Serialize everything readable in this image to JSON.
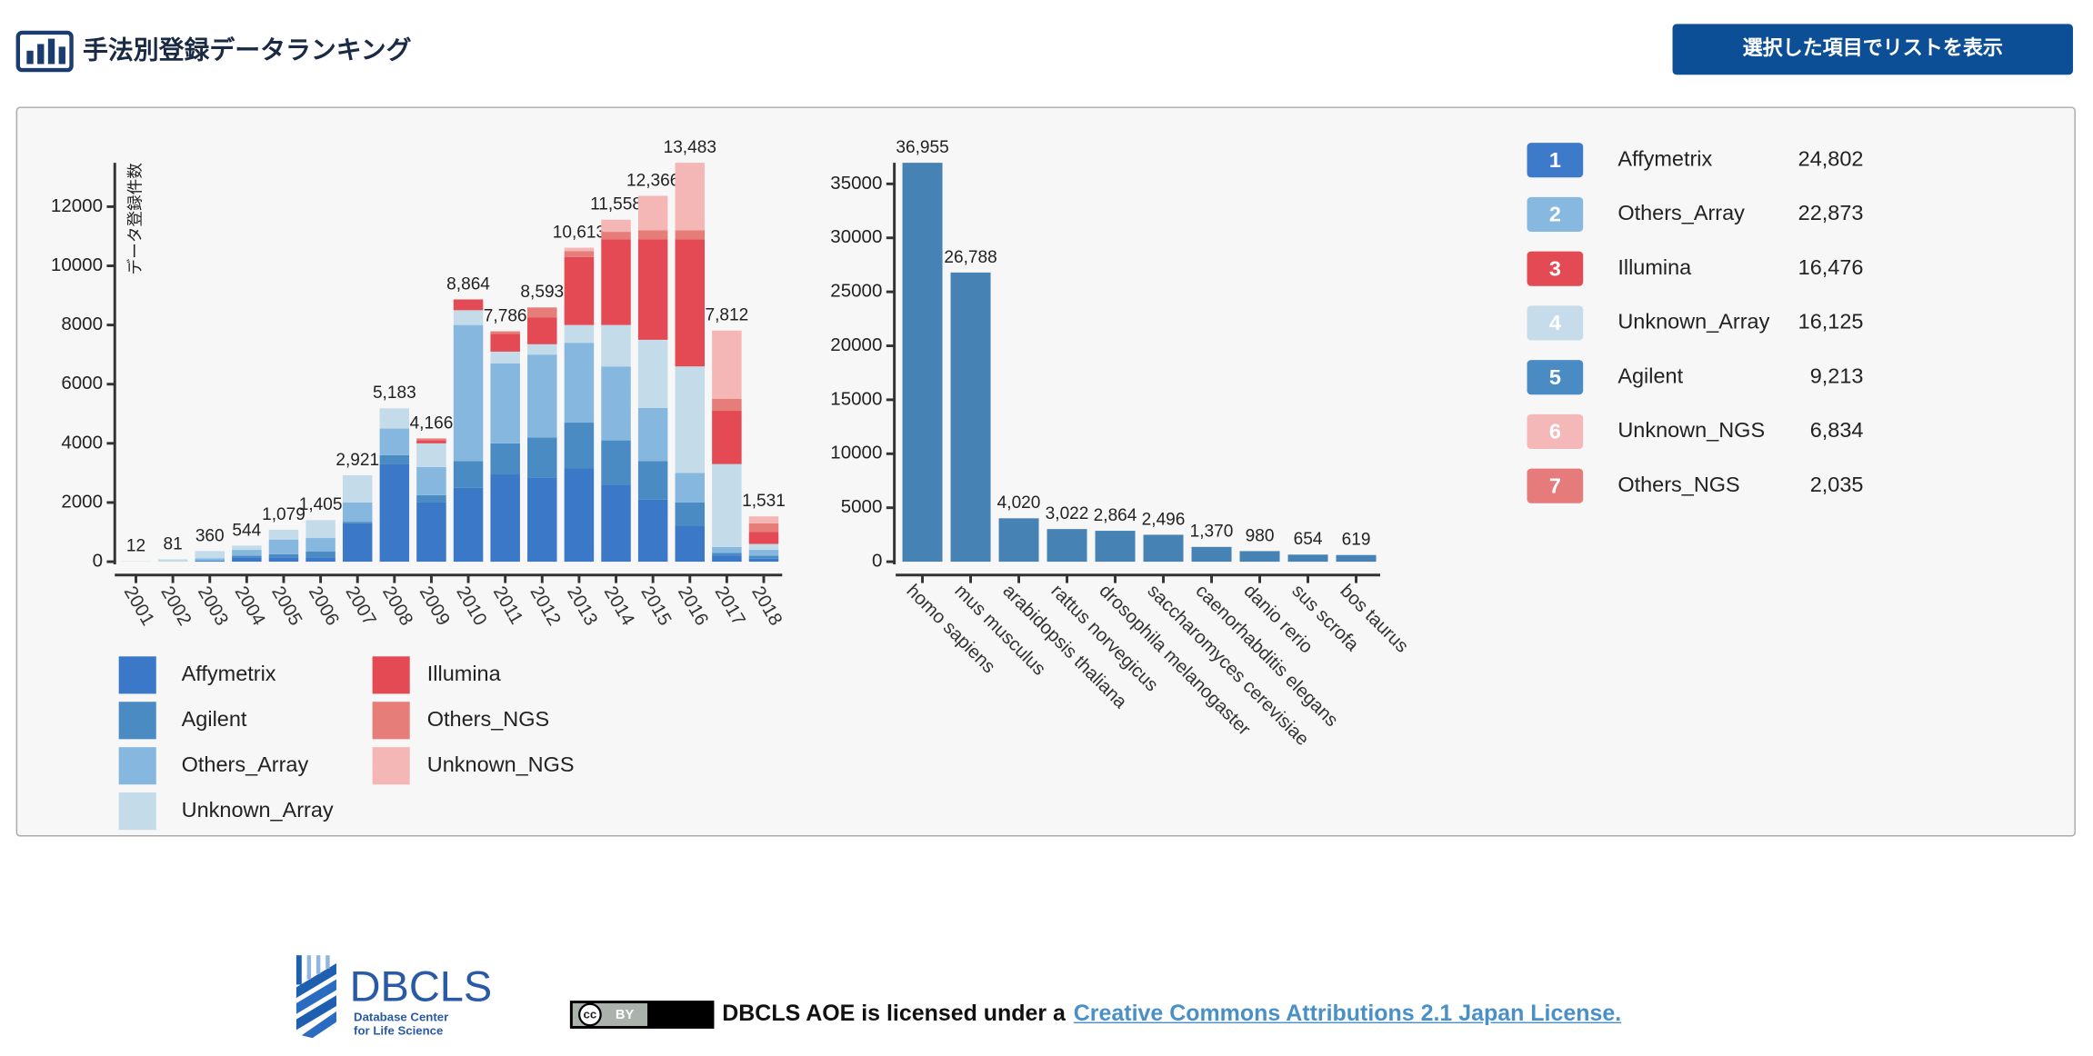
{
  "header": {
    "title": "手法別登録データランキング",
    "button": "選択した項目でリストを表示"
  },
  "chart_data": [
    {
      "type": "stacked-bar",
      "y_label": "データ登録件数",
      "categories": [
        "2001",
        "2002",
        "2003",
        "2004",
        "2005",
        "2006",
        "2007",
        "2008",
        "2009",
        "2010",
        "2011",
        "2012",
        "2013",
        "2014",
        "2015",
        "2016",
        "2017",
        "2018"
      ],
      "series": [
        {
          "name": "Affymetrix",
          "color": "#3b78c8",
          "values": [
            0,
            0,
            30,
            150,
            150,
            150,
            1300,
            3300,
            2000,
            2500,
            2950,
            2850,
            3150,
            2600,
            2100,
            1200,
            200,
            100
          ]
        },
        {
          "name": "Agilent",
          "color": "#4a8bc3",
          "values": [
            0,
            0,
            0,
            50,
            100,
            200,
            50,
            300,
            250,
            900,
            1050,
            1350,
            1550,
            1500,
            1300,
            800,
            100,
            100
          ]
        },
        {
          "name": "Others_Array",
          "color": "#86b8df",
          "values": [
            0,
            0,
            80,
            200,
            500,
            450,
            650,
            900,
            950,
            4600,
            2700,
            2800,
            2700,
            2500,
            1800,
            1000,
            200,
            200
          ]
        },
        {
          "name": "Unknown_Array",
          "color": "#c4dbe9",
          "values": [
            12,
            81,
            250,
            144,
            329,
            605,
            921,
            683,
            800,
            500,
            400,
            350,
            600,
            1400,
            2300,
            3600,
            2800,
            200
          ]
        },
        {
          "name": "Illumina",
          "color": "#e34a53",
          "values": [
            0,
            0,
            0,
            0,
            0,
            0,
            0,
            0,
            100,
            364,
            600,
            900,
            2300,
            2900,
            3400,
            4300,
            1800,
            400
          ]
        },
        {
          "name": "Others_NGS",
          "color": "#e67d78",
          "values": [
            0,
            0,
            0,
            0,
            0,
            0,
            0,
            0,
            66,
            0,
            86,
            343,
            200,
            250,
            300,
            300,
            400,
            300
          ]
        },
        {
          "name": "Unknown_NGS",
          "color": "#f5b7b6",
          "values": [
            0,
            0,
            0,
            0,
            0,
            0,
            0,
            0,
            0,
            0,
            0,
            0,
            113,
            408,
            1166,
            2283,
            2312,
            231
          ]
        }
      ],
      "totals": [
        12,
        81,
        360,
        544,
        1079,
        1405,
        2921,
        5183,
        4166,
        8864,
        7786,
        8593,
        10613,
        11558,
        12366,
        13483,
        7812,
        1531
      ],
      "total_labels": [
        "12",
        "81",
        "360",
        "544",
        "1,079",
        "1,405",
        "2,921",
        "5,183",
        "4,166",
        "8,864",
        "7,786",
        "8,593",
        "10,613",
        "11,558",
        "12,366",
        "13,483",
        "7,812",
        "1,531"
      ],
      "ylim": [
        0,
        13483
      ],
      "yticks": [
        0,
        2000,
        4000,
        6000,
        8000,
        10000,
        12000
      ]
    },
    {
      "type": "bar",
      "y_label": "データ登録件数",
      "color": "#4682b4",
      "categories": [
        "homo sapiens",
        "mus musculus",
        "arabidopsis thaliana",
        "rattus norvegicus",
        "drosophila melanogaster",
        "saccharomyces cerevisiae",
        "caenorhabditis elegans",
        "danio rerio",
        "sus scrofa",
        "bos taurus"
      ],
      "values": [
        36955,
        26788,
        4020,
        3022,
        2864,
        2496,
        1370,
        980,
        654,
        619
      ],
      "value_labels": [
        "36,955",
        "26,788",
        "4,020",
        "3,022",
        "2,864",
        "2,496",
        "1,370",
        "980",
        "654",
        "619"
      ],
      "ylim": [
        0,
        36955
      ],
      "yticks": [
        0,
        5000,
        10000,
        15000,
        20000,
        25000,
        30000,
        35000
      ]
    }
  ],
  "ranking": [
    {
      "rank": 1,
      "name": "Affymetrix",
      "count": "24,802",
      "color": "#3d7ac9"
    },
    {
      "rank": 2,
      "name": "Others_Array",
      "count": "22,873",
      "color": "#87b9e0"
    },
    {
      "rank": 3,
      "name": "Illumina",
      "count": "16,476",
      "color": "#e34a53"
    },
    {
      "rank": 4,
      "name": "Unknown_Array",
      "count": "16,125",
      "color": "#c6dcea"
    },
    {
      "rank": 5,
      "name": "Agilent",
      "count": "9,213",
      "color": "#4a8bc4"
    },
    {
      "rank": 6,
      "name": "Unknown_NGS",
      "count": "6,834",
      "color": "#f4b8b8"
    },
    {
      "rank": 7,
      "name": "Others_NGS",
      "count": "2,035",
      "color": "#e57b7b"
    }
  ],
  "footer": {
    "logo_name": "DBCLS",
    "logo_subtitle": [
      "Database Center",
      "for Life Science"
    ],
    "badge_cc": "cc",
    "badge_by": "BY",
    "license_text": "DBCLS AOE is licensed under a",
    "license_link": "Creative Commons Attributions 2.1 Japan License."
  }
}
